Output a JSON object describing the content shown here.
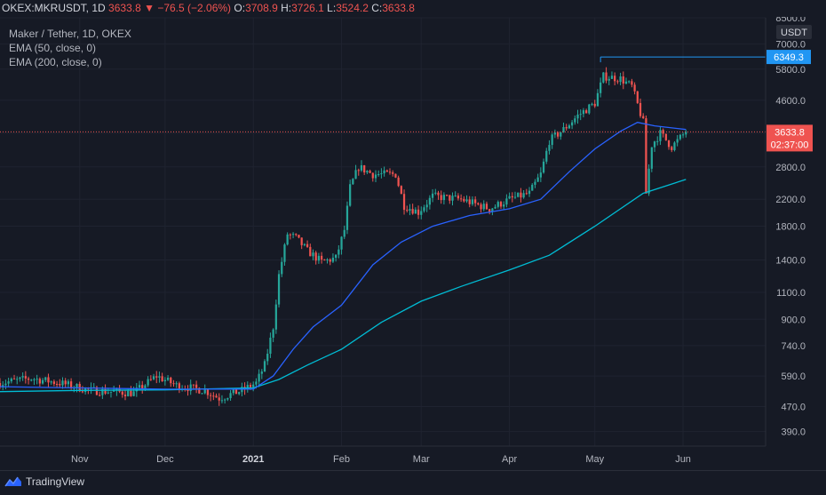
{
  "header": {
    "symbol": "OKEX:MKRUSDT, 1D",
    "last": "3633.8",
    "change_arrow": "▼",
    "change": "−76.5 (−2.06%)",
    "open_label": "O:",
    "open": "3708.9",
    "high_label": "H:",
    "high": "3726.1",
    "low_label": "L:",
    "low": "3524.2",
    "close_label": "C:",
    "close": "3633.8"
  },
  "legend": {
    "title": "Maker / Tether, 1D, OKEX",
    "ema1": "EMA (50, close, 0)",
    "ema2": "EMA (200, close, 0)"
  },
  "footer": {
    "brand": "TradingView",
    "logo_icon": "tradingview-logo-icon"
  },
  "colors": {
    "background": "#161a25",
    "up": "#26a69a",
    "down": "#ef5350",
    "ema50": "#2962ff",
    "ema200": "#00bcd4",
    "grid": "#1f2330",
    "text": "#b2b5be"
  },
  "chart_data": {
    "type": "candlestick",
    "currency_label": "USDT",
    "y_scale": "log",
    "ylim": [
      350,
      8500
    ],
    "y_ticks": [
      8500,
      7000,
      5800,
      4600,
      3600,
      2800,
      2200,
      1800,
      1400,
      1100,
      900,
      740,
      590,
      470,
      390
    ],
    "y_tick_labels": [
      "8500.0",
      "7000.0",
      "5800.0",
      "4600.0",
      "3600.0",
      "2800.0",
      "2200.0",
      "1800.0",
      "1400.0",
      "1100.0",
      "900.0",
      "740.0",
      "590.0",
      "470.0",
      "390.0"
    ],
    "x_ticks": [
      "Nov",
      "Dec",
      "2021",
      "Feb",
      "Mar",
      "Apr",
      "May",
      "Jun"
    ],
    "x_tick_dates": [
      "2020-11-01",
      "2020-12-01",
      "2021-01-01",
      "2021-02-01",
      "2021-03-01",
      "2021-04-01",
      "2021-05-01",
      "2021-06-01"
    ],
    "x_range": [
      "2020-10-04",
      "2021-06-30"
    ],
    "last_candle_date": "2021-06-02",
    "current_price": 3633.8,
    "current_price_label": "3633.8",
    "countdown": "02:37:00",
    "high_marker_price": 6349.3,
    "high_marker_label": "6349.3",
    "high_marker_date": "2021-05-03",
    "price_path": [
      {
        "date": "2020-10-04",
        "price": 560
      },
      {
        "date": "2020-10-15",
        "price": 580
      },
      {
        "date": "2020-10-25",
        "price": 560
      },
      {
        "date": "2020-11-05",
        "price": 530
      },
      {
        "date": "2020-11-20",
        "price": 520
      },
      {
        "date": "2020-11-28",
        "price": 590
      },
      {
        "date": "2020-12-05",
        "price": 550
      },
      {
        "date": "2020-12-15",
        "price": 530
      },
      {
        "date": "2020-12-20",
        "price": 500
      },
      {
        "date": "2020-12-28",
        "price": 530
      },
      {
        "date": "2021-01-02",
        "price": 560
      },
      {
        "date": "2021-01-05",
        "price": 640
      },
      {
        "date": "2021-01-08",
        "price": 850
      },
      {
        "date": "2021-01-10",
        "price": 1250
      },
      {
        "date": "2021-01-13",
        "price": 1700
      },
      {
        "date": "2021-01-16",
        "price": 1650
      },
      {
        "date": "2021-01-20",
        "price": 1500
      },
      {
        "date": "2021-01-25",
        "price": 1380
      },
      {
        "date": "2021-01-30",
        "price": 1420
      },
      {
        "date": "2021-02-02",
        "price": 1750
      },
      {
        "date": "2021-02-04",
        "price": 2400
      },
      {
        "date": "2021-02-07",
        "price": 2800
      },
      {
        "date": "2021-02-12",
        "price": 2650
      },
      {
        "date": "2021-02-20",
        "price": 2650
      },
      {
        "date": "2021-02-23",
        "price": 2100
      },
      {
        "date": "2021-02-28",
        "price": 2000
      },
      {
        "date": "2021-03-05",
        "price": 2250
      },
      {
        "date": "2021-03-15",
        "price": 2200
      },
      {
        "date": "2021-03-25",
        "price": 2050
      },
      {
        "date": "2021-04-01",
        "price": 2200
      },
      {
        "date": "2021-04-08",
        "price": 2300
      },
      {
        "date": "2021-04-12",
        "price": 2650
      },
      {
        "date": "2021-04-15",
        "price": 3400
      },
      {
        "date": "2021-04-20",
        "price": 3700
      },
      {
        "date": "2021-04-25",
        "price": 4100
      },
      {
        "date": "2021-05-01",
        "price": 4500
      },
      {
        "date": "2021-05-04",
        "price": 5500
      },
      {
        "date": "2021-05-10",
        "price": 5400
      },
      {
        "date": "2021-05-14",
        "price": 5100
      },
      {
        "date": "2021-05-18",
        "price": 3900
      },
      {
        "date": "2021-05-19",
        "price": 2300
      },
      {
        "date": "2021-05-21",
        "price": 3300
      },
      {
        "date": "2021-05-24",
        "price": 3600
      },
      {
        "date": "2021-05-28",
        "price": 3250
      },
      {
        "date": "2021-06-02",
        "price": 3633.8
      }
    ],
    "ema50_path": [
      {
        "date": "2020-10-04",
        "price": 545
      },
      {
        "date": "2020-11-01",
        "price": 540
      },
      {
        "date": "2020-12-01",
        "price": 535
      },
      {
        "date": "2021-01-01",
        "price": 535
      },
      {
        "date": "2021-01-08",
        "price": 590
      },
      {
        "date": "2021-01-15",
        "price": 720
      },
      {
        "date": "2021-01-22",
        "price": 850
      },
      {
        "date": "2021-02-01",
        "price": 1000
      },
      {
        "date": "2021-02-12",
        "price": 1350
      },
      {
        "date": "2021-02-22",
        "price": 1600
      },
      {
        "date": "2021-03-05",
        "price": 1800
      },
      {
        "date": "2021-03-18",
        "price": 1950
      },
      {
        "date": "2021-04-01",
        "price": 2050
      },
      {
        "date": "2021-04-12",
        "price": 2200
      },
      {
        "date": "2021-04-22",
        "price": 2700
      },
      {
        "date": "2021-05-01",
        "price": 3200
      },
      {
        "date": "2021-05-10",
        "price": 3650
      },
      {
        "date": "2021-05-16",
        "price": 3900
      },
      {
        "date": "2021-05-22",
        "price": 3800
      },
      {
        "date": "2021-06-02",
        "price": 3700
      }
    ],
    "ema200_path": [
      {
        "date": "2020-10-04",
        "price": 525
      },
      {
        "date": "2020-11-01",
        "price": 530
      },
      {
        "date": "2020-12-01",
        "price": 532
      },
      {
        "date": "2021-01-01",
        "price": 540
      },
      {
        "date": "2021-01-10",
        "price": 575
      },
      {
        "date": "2021-01-20",
        "price": 640
      },
      {
        "date": "2021-02-01",
        "price": 720
      },
      {
        "date": "2021-02-15",
        "price": 880
      },
      {
        "date": "2021-03-01",
        "price": 1030
      },
      {
        "date": "2021-03-15",
        "price": 1150
      },
      {
        "date": "2021-04-01",
        "price": 1300
      },
      {
        "date": "2021-04-15",
        "price": 1450
      },
      {
        "date": "2021-05-01",
        "price": 1800
      },
      {
        "date": "2021-05-18",
        "price": 2300
      },
      {
        "date": "2021-06-02",
        "price": 2550
      }
    ]
  }
}
